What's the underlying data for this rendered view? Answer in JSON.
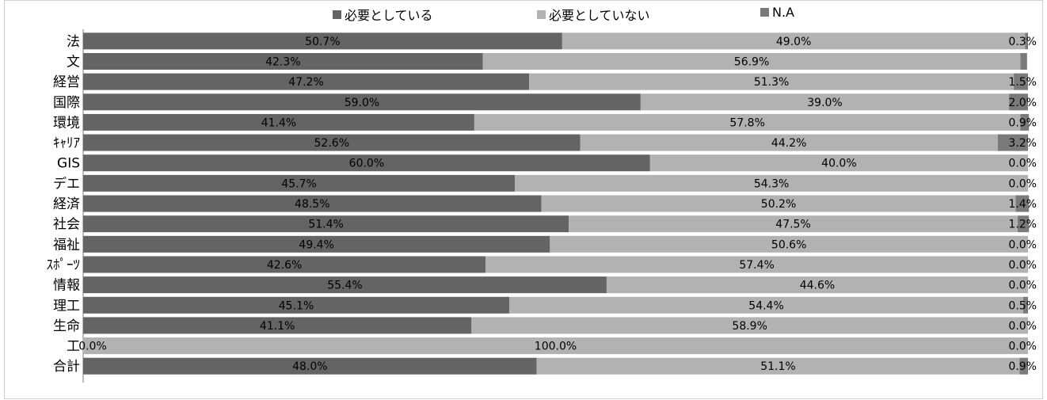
{
  "chart_data": {
    "type": "bar",
    "orientation": "horizontal",
    "stacked": "percent",
    "legend_position": "top",
    "grid": false,
    "xlim": [
      0,
      100
    ],
    "categories": [
      "法",
      "文",
      "経営",
      "国際",
      "環境",
      "ｷｬﾘｱ",
      "GIS",
      "デエ",
      "経済",
      "社会",
      "福祉",
      "ｽﾎﾟｰﾂ",
      "情報",
      "理工",
      "生命",
      "工",
      "合計"
    ],
    "series": [
      {
        "name": "必要としている",
        "color": "#646464",
        "values": [
          50.7,
          42.3,
          47.2,
          59.0,
          41.4,
          52.6,
          60.0,
          45.7,
          48.5,
          51.4,
          49.4,
          42.6,
          55.4,
          45.1,
          41.1,
          0.0,
          48.0
        ],
        "labels": [
          "50.7%",
          "42.3%",
          "47.2%",
          "59.0%",
          "41.4%",
          "52.6%",
          "60.0%",
          "45.7%",
          "48.5%",
          "51.4%",
          "49.4%",
          "42.6%",
          "55.4%",
          "45.1%",
          "41.1%",
          "0.0%",
          "48.0%"
        ]
      },
      {
        "name": "必要としていない",
        "color": "#b2b2b2",
        "values": [
          49.0,
          56.9,
          51.3,
          39.0,
          57.8,
          44.2,
          40.0,
          54.3,
          50.2,
          47.5,
          50.6,
          57.4,
          44.6,
          54.4,
          58.9,
          100.0,
          51.1
        ],
        "labels": [
          "49.0%",
          "56.9%",
          "51.3%",
          "39.0%",
          "57.8%",
          "44.2%",
          "40.0%",
          "54.3%",
          "50.2%",
          "47.5%",
          "50.6%",
          "57.4%",
          "44.6%",
          "54.4%",
          "58.9%",
          "100.0%",
          "51.1%"
        ]
      },
      {
        "name": "N.A",
        "color": "#7a7a7a",
        "values": [
          0.3,
          0.7,
          1.5,
          2.0,
          0.9,
          3.2,
          0.0,
          0.0,
          1.4,
          1.2,
          0.0,
          0.0,
          0.0,
          0.5,
          0.0,
          0.0,
          0.9
        ],
        "labels": [
          "0.3%",
          "",
          "1.5%",
          "2.0%",
          "0.9%",
          "3.2%",
          "0.0%",
          "0.0%",
          "1.4%",
          "1.2%",
          "0.0%",
          "0.0%",
          "0.0%",
          "0.5%",
          "0.0%",
          "0.0%",
          "0.9%"
        ]
      }
    ]
  }
}
